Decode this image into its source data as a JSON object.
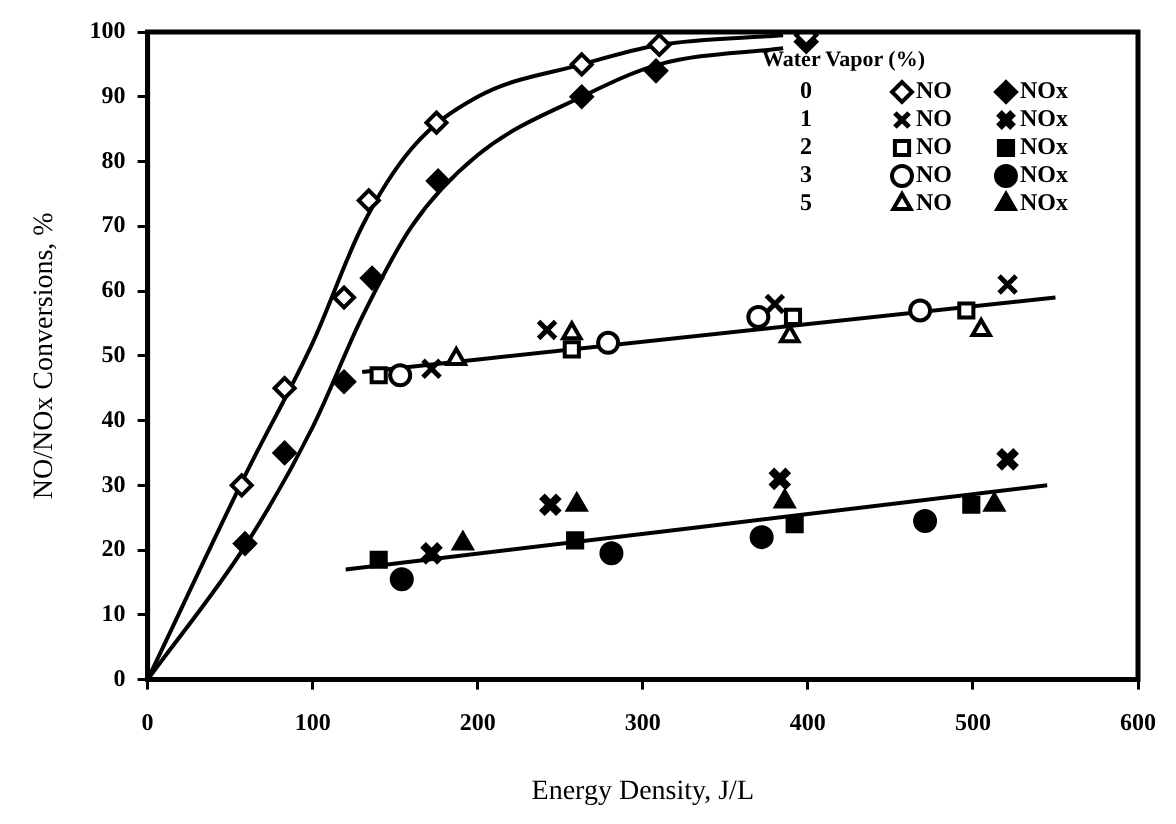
{
  "chart_data": {
    "type": "scatter",
    "xlabel": "Energy Density, J/L",
    "ylabel": "NO/NOx Conversions, %",
    "legend_title": "Water Vapor (%)",
    "legend": "top right",
    "grid": false,
    "xlim": [
      0,
      600
    ],
    "xticks": [
      0,
      100,
      200,
      300,
      400,
      500,
      600
    ],
    "ylim": [
      0,
      100
    ],
    "yticks": [
      0,
      10,
      20,
      30,
      40,
      50,
      60,
      70,
      80,
      90,
      100
    ],
    "annotations": [
      "0",
      "1",
      "2",
      "3",
      "5"
    ],
    "series": [
      {
        "name": "NO",
        "color": "#000000",
        "marker": "diamond",
        "x": [
          57,
          83,
          119,
          134,
          175,
          263,
          310,
          399
        ],
        "values": [
          30,
          45,
          59,
          74,
          86,
          95,
          98,
          99.5
        ]
      },
      {
        "name": "NOx",
        "color": "#000000",
        "marker": "diamond",
        "x": [
          59,
          83,
          119,
          136,
          176,
          263,
          308,
          399
        ],
        "values": [
          21,
          35,
          46,
          62,
          77,
          90,
          94,
          98.5
        ]
      },
      {
        "name": "NO",
        "color": "#000000",
        "marker": "cross",
        "x": [
          172,
          242,
          380,
          521
        ],
        "values": [
          48,
          54,
          58,
          61
        ]
      },
      {
        "name": "NOx",
        "color": "#000000",
        "marker": "cross",
        "x": [
          172,
          244,
          383,
          521
        ],
        "values": [
          19.5,
          27,
          31,
          34
        ]
      },
      {
        "name": "NO",
        "color": "#000000",
        "marker": "square",
        "x": [
          140,
          257,
          391,
          496
        ],
        "values": [
          47,
          51,
          56,
          57
        ]
      },
      {
        "name": "NOx",
        "color": "#000000",
        "marker": "square",
        "x": [
          140,
          259,
          392,
          499
        ],
        "values": [
          18.5,
          21.5,
          24,
          27
        ]
      },
      {
        "name": "NO",
        "color": "#000000",
        "marker": "circle",
        "x": [
          153,
          279,
          370,
          468
        ],
        "values": [
          47,
          52,
          56,
          57
        ]
      },
      {
        "name": "NOx",
        "color": "#000000",
        "marker": "circle",
        "x": [
          154,
          281,
          372,
          471
        ],
        "values": [
          15.5,
          19.5,
          22,
          24.5
        ]
      },
      {
        "name": "NO",
        "color": "#000000",
        "marker": "triangle",
        "x": [
          187,
          257,
          389,
          505
        ],
        "values": [
          49.5,
          53.5,
          53,
          54
        ]
      },
      {
        "name": "NOx",
        "color": "#000000",
        "marker": "triangle",
        "x": [
          191,
          260,
          386,
          513
        ],
        "values": [
          21,
          27,
          27.5,
          27
        ]
      },
      {
        "type": "line",
        "color": "#000000",
        "marker": "none",
        "x": [
          0,
          60,
          100,
          130,
          160,
          200,
          263,
          310,
          385
        ],
        "values": [
          0,
          32,
          52,
          70,
          82,
          90,
          95,
          98,
          99.5
        ]
      },
      {
        "type": "line",
        "color": "#000000",
        "marker": "none",
        "x": [
          0,
          60,
          100,
          130,
          160,
          200,
          263,
          310,
          385
        ],
        "values": [
          0,
          21,
          39,
          56,
          70,
          81,
          90,
          95,
          97.5
        ]
      },
      {
        "type": "line",
        "color": "#000000",
        "marker": "none",
        "x": [
          130,
          550
        ],
        "values": [
          47.5,
          59
        ]
      },
      {
        "type": "line",
        "color": "#000000",
        "marker": "none",
        "x": [
          120,
          545
        ],
        "values": [
          17,
          30
        ]
      }
    ]
  }
}
